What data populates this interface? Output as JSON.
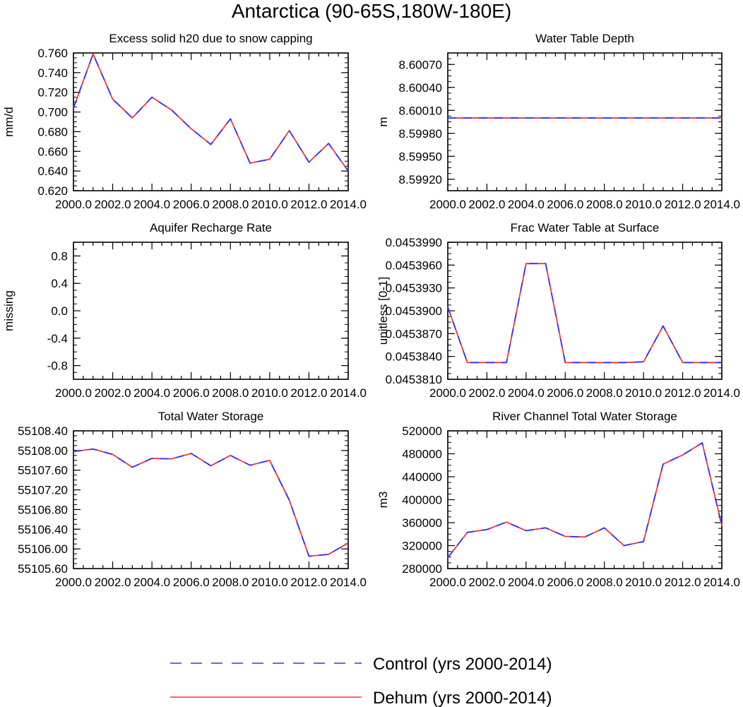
{
  "title": "Antarctica (90-65S,180W-180E)",
  "legend": [
    {
      "label": "Control (yrs 2000-2014)",
      "color": "#3333ff",
      "style": "dashed"
    },
    {
      "label": "Dehum (yrs 2000-2014)",
      "color": "#ff3333",
      "style": "solid"
    }
  ],
  "colors": {
    "control": "#3333ff",
    "dehum": "#ff3333",
    "axis": "#000000"
  },
  "chart_data": [
    {
      "type": "line",
      "title": "Excess solid h20 due to snow capping",
      "ylabel": "mm/d",
      "xlim": [
        2000,
        2014
      ],
      "ylim": [
        0.62,
        0.76
      ],
      "x_ticks": [
        "2000.0",
        "2002.0",
        "2004.0",
        "2006.0",
        "2008.0",
        "2010.0",
        "2012.0",
        "2014.0"
      ],
      "y_ticks": [
        {
          "v": 0.62,
          "label": "0.620"
        },
        {
          "v": 0.64,
          "label": "0.640"
        },
        {
          "v": 0.66,
          "label": "0.660"
        },
        {
          "v": 0.68,
          "label": "0.680"
        },
        {
          "v": 0.7,
          "label": "0.700"
        },
        {
          "v": 0.72,
          "label": "0.720"
        },
        {
          "v": 0.74,
          "label": "0.740"
        },
        {
          "v": 0.76,
          "label": "0.760"
        }
      ],
      "x": [
        2000,
        2001,
        2002,
        2003,
        2004,
        2005,
        2006,
        2007,
        2008,
        2009,
        2010,
        2011,
        2012,
        2013,
        2014
      ],
      "series": [
        {
          "name": "Control (yrs 2000-2014)",
          "values": [
            0.704,
            0.759,
            0.713,
            0.694,
            0.715,
            0.702,
            0.683,
            0.667,
            0.693,
            0.648,
            0.652,
            0.681,
            0.649,
            0.668,
            0.64
          ]
        },
        {
          "name": "Dehum (yrs 2000-2014)",
          "values": [
            0.704,
            0.759,
            0.713,
            0.694,
            0.715,
            0.702,
            0.683,
            0.667,
            0.693,
            0.648,
            0.652,
            0.681,
            0.649,
            0.668,
            0.64
          ]
        }
      ]
    },
    {
      "type": "line",
      "title": "Water Table Depth",
      "ylabel": "m",
      "xlim": [
        2000,
        2014
      ],
      "ylim": [
        8.59905,
        8.60085
      ],
      "x_ticks": [
        "2000.0",
        "2002.0",
        "2004.0",
        "2006.0",
        "2008.0",
        "2010.0",
        "2012.0",
        "2014.0"
      ],
      "y_ticks": [
        {
          "v": 8.5992,
          "label": "8.59920"
        },
        {
          "v": 8.5995,
          "label": "8.59950"
        },
        {
          "v": 8.5998,
          "label": "8.59980"
        },
        {
          "v": 8.6001,
          "label": "8.60010"
        },
        {
          "v": 8.6004,
          "label": "8.60040"
        },
        {
          "v": 8.6007,
          "label": "8.60070"
        }
      ],
      "x": [
        2000,
        2001,
        2002,
        2003,
        2004,
        2005,
        2006,
        2007,
        2008,
        2009,
        2010,
        2011,
        2012,
        2013,
        2014
      ],
      "series": [
        {
          "name": "Control (yrs 2000-2014)",
          "values": [
            8.6,
            8.6,
            8.6,
            8.6,
            8.6,
            8.6,
            8.6,
            8.6,
            8.6,
            8.6,
            8.6,
            8.6,
            8.6,
            8.6,
            8.6
          ]
        },
        {
          "name": "Dehum (yrs 2000-2014)",
          "values": [
            8.6,
            8.6,
            8.6,
            8.6,
            8.6,
            8.6,
            8.6,
            8.6,
            8.6,
            8.6,
            8.6,
            8.6,
            8.6,
            8.6,
            8.6
          ]
        }
      ]
    },
    {
      "type": "line",
      "title": "Aquifer Recharge Rate",
      "ylabel": "missing",
      "xlim": [
        2000,
        2014
      ],
      "ylim": [
        -1.0,
        1.0
      ],
      "x_ticks": [
        "2000.0",
        "2002.0",
        "2004.0",
        "2006.0",
        "2008.0",
        "2010.0",
        "2012.0",
        "2014.0"
      ],
      "y_ticks": [
        {
          "v": -0.8,
          "label": "-0.8"
        },
        {
          "v": -0.4,
          "label": "-0.4"
        },
        {
          "v": 0.0,
          "label": "0.0"
        },
        {
          "v": 0.4,
          "label": "0.4"
        },
        {
          "v": 0.8,
          "label": "0.8"
        }
      ],
      "x": [],
      "series": []
    },
    {
      "type": "line",
      "title": "Frac Water Table at Surface",
      "ylabel": "unitless [0-1]",
      "xlim": [
        2000,
        2014
      ],
      "ylim": [
        0.045381,
        0.045399
      ],
      "x_ticks": [
        "2000.0",
        "2002.0",
        "2004.0",
        "2006.0",
        "2008.0",
        "2010.0",
        "2012.0",
        "2014.0"
      ],
      "y_ticks": [
        {
          "v": 0.045381,
          "label": "0.0453810"
        },
        {
          "v": 0.045384,
          "label": "0.0453840"
        },
        {
          "v": 0.045387,
          "label": "0.0453870"
        },
        {
          "v": 0.04539,
          "label": "0.0453900"
        },
        {
          "v": 0.045393,
          "label": "0.0453930"
        },
        {
          "v": 0.045396,
          "label": "0.0453960"
        },
        {
          "v": 0.045399,
          "label": "0.0453990"
        }
      ],
      "x": [
        2000,
        2001,
        2002,
        2003,
        2004,
        2005,
        2006,
        2007,
        2008,
        2009,
        2010,
        2011,
        2012,
        2013,
        2014
      ],
      "series": [
        {
          "name": "Control (yrs 2000-2014)",
          "values": [
            0.0453905,
            0.0453832,
            0.0453832,
            0.0453832,
            0.0453962,
            0.0453962,
            0.0453832,
            0.0453832,
            0.0453832,
            0.0453832,
            0.0453833,
            0.045388,
            0.0453832,
            0.0453832,
            0.0453832
          ]
        },
        {
          "name": "Dehum (yrs 2000-2014)",
          "values": [
            0.0453905,
            0.0453832,
            0.0453832,
            0.0453832,
            0.0453962,
            0.0453962,
            0.0453832,
            0.0453832,
            0.0453832,
            0.0453832,
            0.0453833,
            0.045388,
            0.0453832,
            0.0453832,
            0.0453832
          ]
        }
      ]
    },
    {
      "type": "line",
      "title": "Total Water Storage",
      "ylabel": "",
      "xlim": [
        2000,
        2014
      ],
      "ylim": [
        55105.6,
        55108.4
      ],
      "x_ticks": [
        "2000.0",
        "2002.0",
        "2004.0",
        "2006.0",
        "2008.0",
        "2010.0",
        "2012.0",
        "2014.0"
      ],
      "y_ticks": [
        {
          "v": 55105.6,
          "label": "55105.60"
        },
        {
          "v": 55106.0,
          "label": "55106.00"
        },
        {
          "v": 55106.4,
          "label": "55106.40"
        },
        {
          "v": 55106.8,
          "label": "55106.80"
        },
        {
          "v": 55107.2,
          "label": "55107.20"
        },
        {
          "v": 55107.6,
          "label": "55107.60"
        },
        {
          "v": 55108.0,
          "label": "55108.00"
        },
        {
          "v": 55108.4,
          "label": "55108.40"
        }
      ],
      "x": [
        2000,
        2001,
        2002,
        2003,
        2004,
        2005,
        2006,
        2007,
        2008,
        2009,
        2010,
        2011,
        2012,
        2013,
        2014
      ],
      "series": [
        {
          "name": "Control (yrs 2000-2014)",
          "values": [
            55107.98,
            55108.03,
            55107.92,
            55107.66,
            55107.84,
            55107.83,
            55107.94,
            55107.69,
            55107.9,
            55107.7,
            55107.8,
            55106.99,
            55105.85,
            55105.89,
            55106.12
          ]
        },
        {
          "name": "Dehum (yrs 2000-2014)",
          "values": [
            55107.98,
            55108.03,
            55107.92,
            55107.66,
            55107.84,
            55107.83,
            55107.94,
            55107.69,
            55107.9,
            55107.7,
            55107.8,
            55106.99,
            55105.85,
            55105.89,
            55106.12
          ]
        }
      ]
    },
    {
      "type": "line",
      "title": "River Channel Total Water Storage",
      "ylabel": "m3",
      "xlim": [
        2000,
        2014
      ],
      "ylim": [
        280000,
        520000
      ],
      "x_ticks": [
        "2000.0",
        "2002.0",
        "2004.0",
        "2006.0",
        "2008.0",
        "2010.0",
        "2012.0",
        "2014.0"
      ],
      "y_ticks": [
        {
          "v": 280000,
          "label": "280000"
        },
        {
          "v": 320000,
          "label": "320000"
        },
        {
          "v": 360000,
          "label": "360000"
        },
        {
          "v": 400000,
          "label": "400000"
        },
        {
          "v": 440000,
          "label": "440000"
        },
        {
          "v": 480000,
          "label": "480000"
        },
        {
          "v": 520000,
          "label": "520000"
        }
      ],
      "x": [
        2000,
        2001,
        2002,
        2003,
        2004,
        2005,
        2006,
        2007,
        2008,
        2009,
        2010,
        2011,
        2012,
        2013,
        2014
      ],
      "series": [
        {
          "name": "Control (yrs 2000-2014)",
          "values": [
            299000,
            343000,
            348000,
            361000,
            346000,
            351000,
            336000,
            335000,
            351000,
            320000,
            327000,
            462000,
            478000,
            499000,
            355000
          ]
        },
        {
          "name": "Dehum (yrs 2000-2014)",
          "values": [
            299000,
            343000,
            348000,
            361000,
            346000,
            351000,
            336000,
            335000,
            351000,
            320000,
            327000,
            462000,
            478000,
            499000,
            355000
          ]
        }
      ]
    }
  ]
}
